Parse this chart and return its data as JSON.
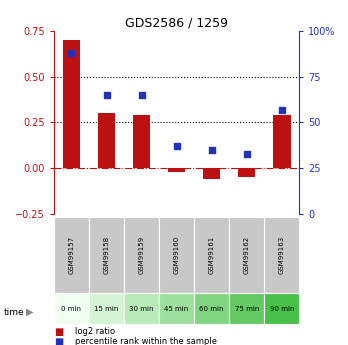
{
  "title": "GDS2586 / 1259",
  "samples": [
    "GSM99157",
    "GSM99158",
    "GSM99159",
    "GSM99160",
    "GSM99161",
    "GSM99162",
    "GSM99163"
  ],
  "time_labels": [
    "0 min",
    "15 min",
    "30 min",
    "45 min",
    "60 min",
    "75 min",
    "90 min"
  ],
  "log2_values": [
    0.7,
    0.3,
    0.29,
    -0.02,
    -0.06,
    -0.05,
    0.29
  ],
  "percentile_values": [
    88,
    65,
    65,
    37,
    35,
    33,
    57
  ],
  "bar_color": "#BB1111",
  "dot_color": "#2233BB",
  "ylim_left": [
    -0.25,
    0.75
  ],
  "ylim_right": [
    0,
    100
  ],
  "yticks_left": [
    -0.25,
    0,
    0.25,
    0.5,
    0.75
  ],
  "yticks_right": [
    0,
    25,
    50,
    75,
    100
  ],
  "hline_values": [
    0.25,
    0.5
  ],
  "zero_line": 0.0,
  "gsm_bg_color": "#C8C8C8",
  "time_bg_colors": [
    "#F0FFF0",
    "#D4F5D4",
    "#B8EBB8",
    "#9CE09C",
    "#80D680",
    "#64CB64",
    "#48C148"
  ],
  "legend_items": [
    "log2 ratio",
    "percentile rank within the sample"
  ],
  "legend_colors": [
    "#BB1111",
    "#2233BB"
  ]
}
